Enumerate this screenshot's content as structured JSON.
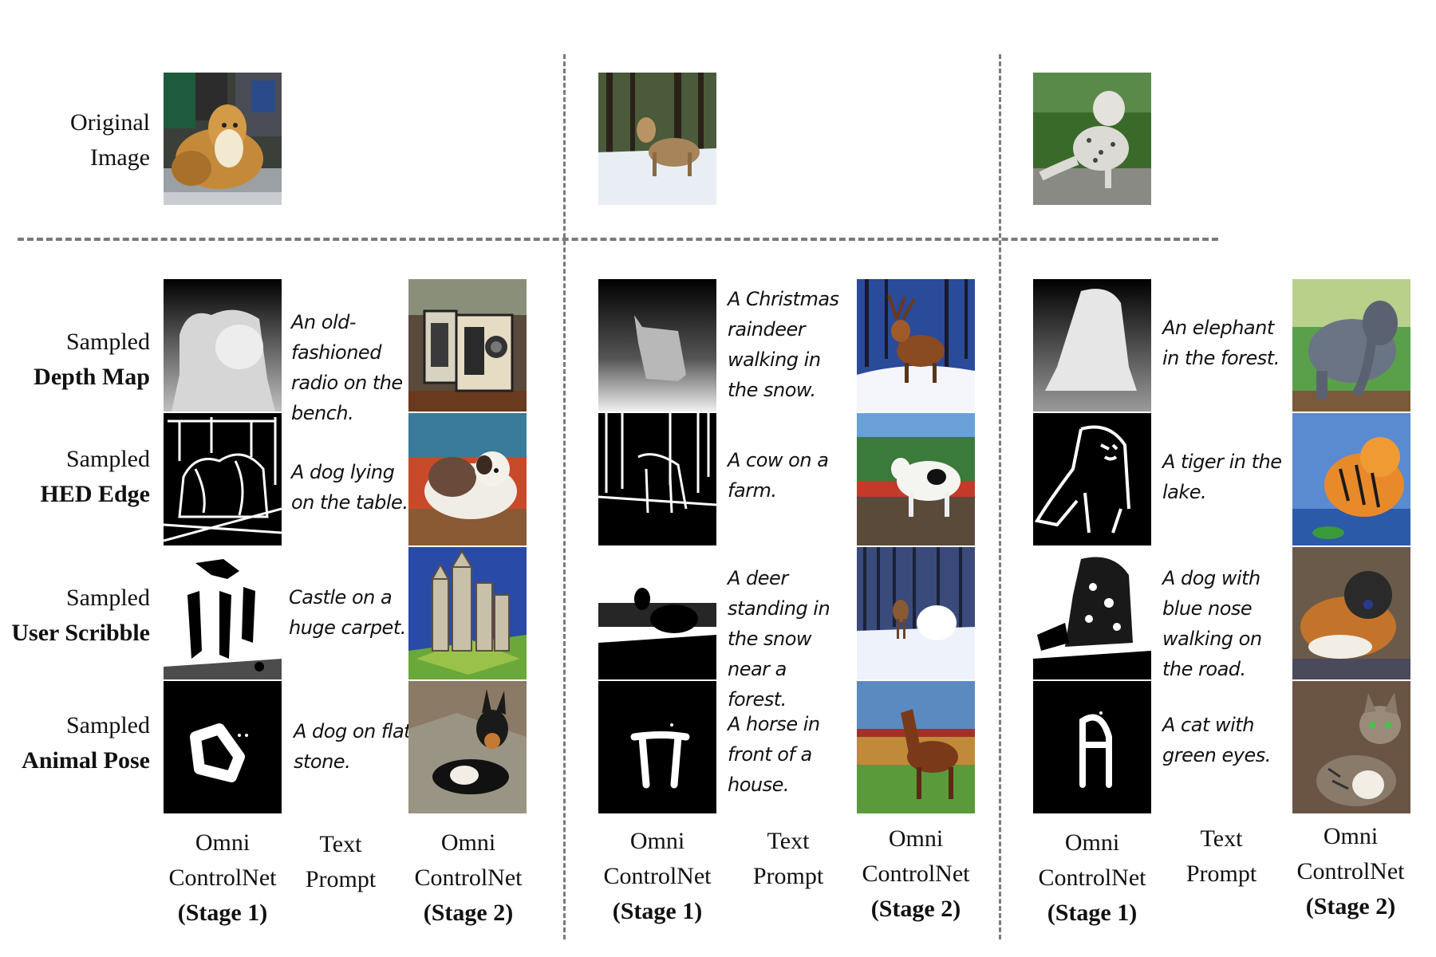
{
  "row_labels": {
    "original": [
      "Original",
      "Image"
    ],
    "depth": [
      "Sampled",
      "Depth Map"
    ],
    "hed": [
      "Sampled",
      "HED Edge"
    ],
    "scribble": [
      "Sampled",
      "User Scribble"
    ],
    "pose": [
      "Sampled",
      "Animal Pose"
    ]
  },
  "columns": [
    {
      "original": "collie dog on grooming table",
      "prompts": [
        "An old-fashioned radio on the bench.",
        "A dog lying on the table.",
        "Castle on a huge carpet.",
        "A dog on flat stone."
      ]
    },
    {
      "original": "deer standing in snow",
      "prompts": [
        "A Christmas raindeer walking in the snow.",
        "A cow on a farm.",
        "A deer standing in the snow near a forest.",
        "A horse in front of a house."
      ]
    },
    {
      "original": "snow leopard walking on road",
      "prompts": [
        "An elephant in the forest.",
        "A tiger in the lake.",
        "A dog with blue nose walking on the road.",
        "A cat with green eyes."
      ]
    }
  ],
  "footer": {
    "stage1": [
      "Omni",
      "ControlNet",
      "(Stage 1)"
    ],
    "text": [
      "Text",
      "Prompt"
    ],
    "stage2": [
      "Omni",
      "ControlNet",
      "(Stage 2)"
    ]
  },
  "colors": {
    "divider": "#7a7a7a",
    "text": "#111111"
  }
}
